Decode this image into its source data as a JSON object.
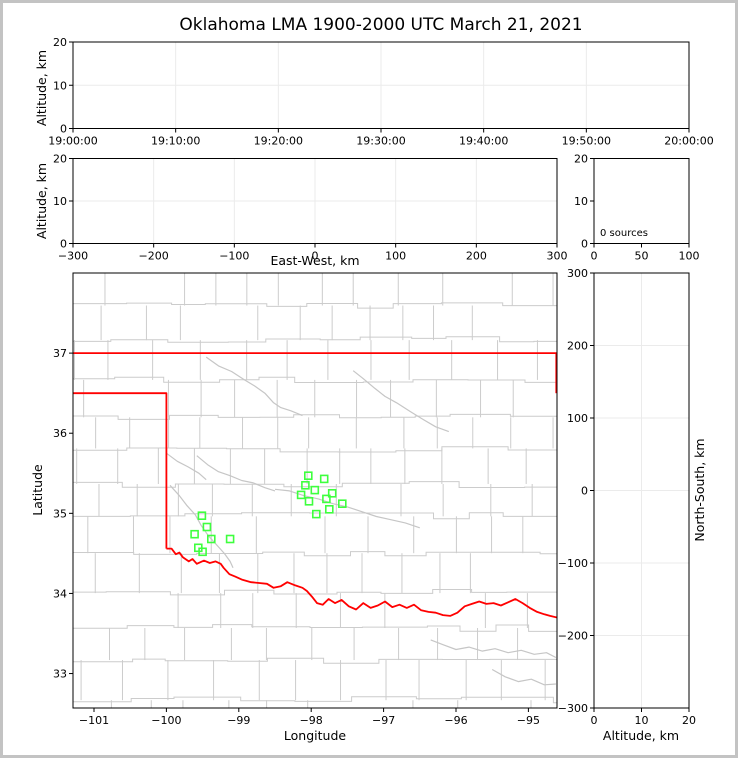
{
  "title": "Oklahoma LMA 1900-2000 UTC March 21, 2021",
  "colors": {
    "background": "#ffffff",
    "frame": "#c3c3c3",
    "axis": "#000000",
    "grid": "#ebebeb",
    "county": "#cccccc",
    "river": "#c6c6c6",
    "state_border": "#ff0000",
    "station": "#3eff3e",
    "text": "#000000"
  },
  "chart_data": [
    {
      "id": "time-height",
      "type": "scatter",
      "title": "Oklahoma LMA 1900-2000 UTC March 21, 2021",
      "xlabel": "",
      "ylabel": "Altitude, km",
      "xlim": [
        0,
        60
      ],
      "ylim": [
        0,
        20
      ],
      "xtick_values": [
        0,
        10,
        20,
        30,
        40,
        50,
        60
      ],
      "xtick_labels": [
        "19:00:00",
        "19:10:00",
        "19:20:00",
        "19:30:00",
        "19:40:00",
        "19:50:00",
        "20:00:00"
      ],
      "ytick_values": [
        0,
        10,
        20
      ],
      "ytick_labels": [
        "0",
        "10",
        "20"
      ],
      "grid": true,
      "series": []
    },
    {
      "id": "ew-height",
      "type": "scatter",
      "xlabel": "East-West, km",
      "ylabel": "Altitude, km",
      "xlim": [
        -300,
        300
      ],
      "ylim": [
        0,
        20
      ],
      "xtick_values": [
        -300,
        -200,
        -100,
        0,
        100,
        200,
        300
      ],
      "xtick_labels": [
        "−300",
        "−200",
        "−100",
        "0",
        "100",
        "200",
        "300"
      ],
      "ytick_values": [
        0,
        10,
        20
      ],
      "ytick_labels": [
        "0",
        "10",
        "20"
      ],
      "grid": true,
      "series": []
    },
    {
      "id": "source-histogram",
      "type": "histogram",
      "annotation": "0 sources",
      "xlabel": "",
      "ylabel": "",
      "xlim": [
        0,
        100
      ],
      "ylim": [
        0,
        20
      ],
      "xtick_values": [
        0,
        50,
        100
      ],
      "xtick_labels": [
        "0",
        "50",
        "100"
      ],
      "ytick_values": [
        0,
        10,
        20
      ],
      "ytick_labels": [
        "0",
        "10",
        "20"
      ],
      "grid": false,
      "values": []
    },
    {
      "id": "plan-map",
      "type": "scatter",
      "xlabel": "Longitude",
      "ylabel": "Latitude",
      "xlim": [
        -101.29,
        -94.605
      ],
      "ylim": [
        32.57,
        38.0
      ],
      "xtick_values": [
        -101,
        -100,
        -99,
        -98,
        -97,
        -96,
        -95
      ],
      "xtick_labels": [
        "−101",
        "−100",
        "−99",
        "−98",
        "−97",
        "−96",
        "−95"
      ],
      "ytick_values": [
        33,
        34,
        35,
        36,
        37
      ],
      "ytick_labels": [
        "33",
        "34",
        "35",
        "36",
        "37"
      ],
      "grid": false,
      "series": [
        {
          "name": "lma-station-locations",
          "marker": "open-square",
          "color": "#3eff3e",
          "points": [
            [
              -98.04,
              35.47
            ],
            [
              -97.82,
              35.43
            ],
            [
              -98.08,
              35.35
            ],
            [
              -97.95,
              35.29
            ],
            [
              -97.71,
              35.25
            ],
            [
              -98.14,
              35.23
            ],
            [
              -97.79,
              35.18
            ],
            [
              -98.03,
              35.15
            ],
            [
              -97.57,
              35.12
            ],
            [
              -97.75,
              35.05
            ],
            [
              -97.93,
              34.99
            ],
            [
              -99.51,
              34.97
            ],
            [
              -99.44,
              34.83
            ],
            [
              -99.61,
              34.74
            ],
            [
              -99.38,
              34.68
            ],
            [
              -99.12,
              34.68
            ],
            [
              -99.56,
              34.57
            ],
            [
              -99.5,
              34.52
            ]
          ]
        }
      ]
    },
    {
      "id": "ns-height",
      "type": "scatter",
      "xlabel": "Altitude, km",
      "ylabel": "North-South, km",
      "xlim": [
        0,
        20
      ],
      "ylim": [
        -300,
        300
      ],
      "xtick_values": [
        0,
        10,
        20
      ],
      "xtick_labels": [
        "0",
        "10",
        "20"
      ],
      "ytick_values": [
        300,
        200,
        100,
        0,
        -100,
        -200,
        -300
      ],
      "ytick_labels": [
        "300",
        "200",
        "100",
        "0",
        "−100",
        "−200",
        "−300"
      ],
      "grid": true,
      "series": []
    }
  ],
  "map_geography": {
    "county_grid": {
      "seed": 42,
      "row_min": 0.36,
      "row_var": 0.16,
      "col_min": 0.42,
      "col_var": 0.24,
      "jog": 0.09
    },
    "borders": [
      {
        "name": "kansas-oklahoma-border",
        "points": [
          [
            -101.29,
            37.0
          ],
          [
            -94.605,
            37.0
          ]
        ]
      },
      {
        "name": "oklahoma-panhandle-texas-border",
        "points": [
          [
            -101.29,
            36.5
          ],
          [
            -100.0,
            36.5
          ],
          [
            -100.0,
            34.56
          ]
        ]
      },
      {
        "name": "missouri-corner-border",
        "points": [
          [
            -94.615,
            37.0
          ],
          [
            -94.615,
            36.5
          ]
        ]
      },
      {
        "name": "red-river-texas-border",
        "points": [
          [
            -100.0,
            34.56
          ],
          [
            -99.93,
            34.56
          ],
          [
            -99.87,
            34.49
          ],
          [
            -99.82,
            34.51
          ],
          [
            -99.77,
            34.45
          ],
          [
            -99.69,
            34.4
          ],
          [
            -99.64,
            34.43
          ],
          [
            -99.58,
            34.37
          ],
          [
            -99.48,
            34.41
          ],
          [
            -99.4,
            34.38
          ],
          [
            -99.32,
            34.4
          ],
          [
            -99.25,
            34.37
          ],
          [
            -99.21,
            34.32
          ],
          [
            -99.13,
            34.24
          ],
          [
            -99.05,
            34.21
          ],
          [
            -98.95,
            34.17
          ],
          [
            -98.83,
            34.14
          ],
          [
            -98.72,
            34.13
          ],
          [
            -98.61,
            34.12
          ],
          [
            -98.52,
            34.07
          ],
          [
            -98.42,
            34.09
          ],
          [
            -98.33,
            34.14
          ],
          [
            -98.22,
            34.1
          ],
          [
            -98.12,
            34.07
          ],
          [
            -98.06,
            34.03
          ],
          [
            -97.99,
            33.96
          ],
          [
            -97.92,
            33.88
          ],
          [
            -97.84,
            33.86
          ],
          [
            -97.76,
            33.93
          ],
          [
            -97.67,
            33.88
          ],
          [
            -97.58,
            33.92
          ],
          [
            -97.48,
            33.84
          ],
          [
            -97.38,
            33.8
          ],
          [
            -97.28,
            33.88
          ],
          [
            -97.18,
            33.82
          ],
          [
            -97.08,
            33.85
          ],
          [
            -96.98,
            33.9
          ],
          [
            -96.88,
            33.83
          ],
          [
            -96.78,
            33.86
          ],
          [
            -96.68,
            33.82
          ],
          [
            -96.58,
            33.86
          ],
          [
            -96.48,
            33.79
          ],
          [
            -96.38,
            33.77
          ],
          [
            -96.28,
            33.76
          ],
          [
            -96.18,
            33.73
          ],
          [
            -96.08,
            33.72
          ],
          [
            -95.98,
            33.76
          ],
          [
            -95.88,
            33.84
          ],
          [
            -95.78,
            33.87
          ],
          [
            -95.68,
            33.9
          ],
          [
            -95.58,
            33.87
          ],
          [
            -95.48,
            33.88
          ],
          [
            -95.38,
            33.85
          ],
          [
            -95.28,
            33.89
          ],
          [
            -95.18,
            33.93
          ],
          [
            -95.08,
            33.88
          ],
          [
            -94.98,
            33.82
          ],
          [
            -94.88,
            33.77
          ],
          [
            -94.78,
            33.74
          ],
          [
            -94.7,
            33.72
          ],
          [
            -94.605,
            33.7
          ]
        ]
      }
    ],
    "rivers": [
      {
        "name": "salt-fork",
        "points": [
          [
            -99.45,
            36.95
          ],
          [
            -99.28,
            36.84
          ],
          [
            -99.1,
            36.77
          ],
          [
            -98.93,
            36.67
          ],
          [
            -98.78,
            36.59
          ],
          [
            -98.64,
            36.5
          ],
          [
            -98.52,
            36.38
          ],
          [
            -98.42,
            36.32
          ],
          [
            -98.28,
            36.28
          ],
          [
            -98.12,
            36.22
          ]
        ]
      },
      {
        "name": "arkansas",
        "points": [
          [
            -97.42,
            36.78
          ],
          [
            -97.28,
            36.68
          ],
          [
            -97.12,
            36.56
          ],
          [
            -96.98,
            36.46
          ],
          [
            -96.82,
            36.38
          ],
          [
            -96.63,
            36.27
          ],
          [
            -96.45,
            36.17
          ],
          [
            -96.28,
            36.08
          ],
          [
            -96.1,
            36.02
          ]
        ]
      },
      {
        "name": "washita",
        "points": [
          [
            -99.58,
            35.72
          ],
          [
            -99.42,
            35.6
          ],
          [
            -99.28,
            35.52
          ],
          [
            -99.12,
            35.47
          ],
          [
            -98.96,
            35.41
          ],
          [
            -98.8,
            35.38
          ],
          [
            -98.64,
            35.32
          ],
          [
            -98.5,
            35.28
          ]
        ]
      },
      {
        "name": "north-fork-red",
        "points": [
          [
            -99.95,
            35.35
          ],
          [
            -99.82,
            35.22
          ],
          [
            -99.72,
            35.1
          ],
          [
            -99.6,
            34.98
          ],
          [
            -99.52,
            34.85
          ],
          [
            -99.42,
            34.72
          ],
          [
            -99.3,
            34.6
          ],
          [
            -99.2,
            34.5
          ],
          [
            -99.12,
            34.4
          ],
          [
            -99.08,
            34.32
          ]
        ]
      },
      {
        "name": "canadian",
        "points": [
          [
            -98.5,
            35.3
          ],
          [
            -98.3,
            35.28
          ],
          [
            -98.1,
            35.22
          ],
          [
            -97.9,
            35.18
          ],
          [
            -97.7,
            35.12
          ],
          [
            -97.5,
            35.08
          ],
          [
            -97.3,
            35.02
          ],
          [
            -97.1,
            34.96
          ],
          [
            -96.9,
            34.92
          ],
          [
            -96.7,
            34.88
          ],
          [
            -96.5,
            34.82
          ]
        ]
      },
      {
        "name": "elk",
        "points": [
          [
            -100.0,
            35.75
          ],
          [
            -99.85,
            35.65
          ],
          [
            -99.7,
            35.58
          ],
          [
            -99.55,
            35.5
          ],
          [
            -99.45,
            35.42
          ]
        ]
      },
      {
        "name": "sulphur",
        "points": [
          [
            -96.35,
            33.42
          ],
          [
            -96.18,
            33.36
          ],
          [
            -96.0,
            33.3
          ],
          [
            -95.82,
            33.33
          ],
          [
            -95.64,
            33.28
          ],
          [
            -95.46,
            33.31
          ],
          [
            -95.28,
            33.26
          ],
          [
            -95.1,
            33.29
          ],
          [
            -94.92,
            33.24
          ],
          [
            -94.75,
            33.26
          ],
          [
            -94.62,
            33.2
          ]
        ]
      },
      {
        "name": "se-texas",
        "points": [
          [
            -95.5,
            33.05
          ],
          [
            -95.32,
            32.96
          ],
          [
            -95.14,
            32.9
          ],
          [
            -94.96,
            32.93
          ],
          [
            -94.78,
            32.86
          ],
          [
            -94.62,
            32.87
          ]
        ]
      }
    ]
  }
}
